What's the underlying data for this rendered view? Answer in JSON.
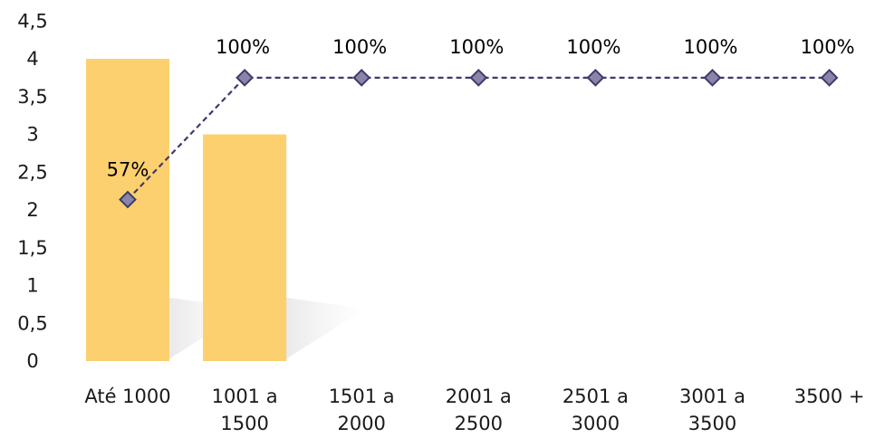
{
  "chart_data": {
    "type": "bar",
    "categories": [
      [
        "Até 1000"
      ],
      [
        "1001 a",
        "1500"
      ],
      [
        "1501 a",
        "2000"
      ],
      [
        "2001 a",
        "2500"
      ],
      [
        "2501 a",
        "3000"
      ],
      [
        "3001 a",
        "3500"
      ],
      [
        "3500 +"
      ]
    ],
    "ylim": [
      0,
      4.5
    ],
    "yticks": [
      "0",
      "0,5",
      "1",
      "1,5",
      "2",
      "2,5",
      "3",
      "3,5",
      "4",
      "4,5"
    ],
    "grid": false,
    "series": [
      {
        "kind": "bar",
        "values": [
          4,
          3,
          0,
          0,
          0,
          0,
          0
        ],
        "color": "#FCD06E"
      },
      {
        "kind": "line",
        "values": [
          57,
          100,
          100,
          100,
          100,
          100,
          100
        ],
        "labels": [
          "57%",
          "100%",
          "100%",
          "100%",
          "100%",
          "100%",
          "100%"
        ],
        "color": "#3F3A6B",
        "marker_fill": "#8A85A8",
        "style": "dashed"
      }
    ],
    "secondary_axis_hidden": true
  }
}
